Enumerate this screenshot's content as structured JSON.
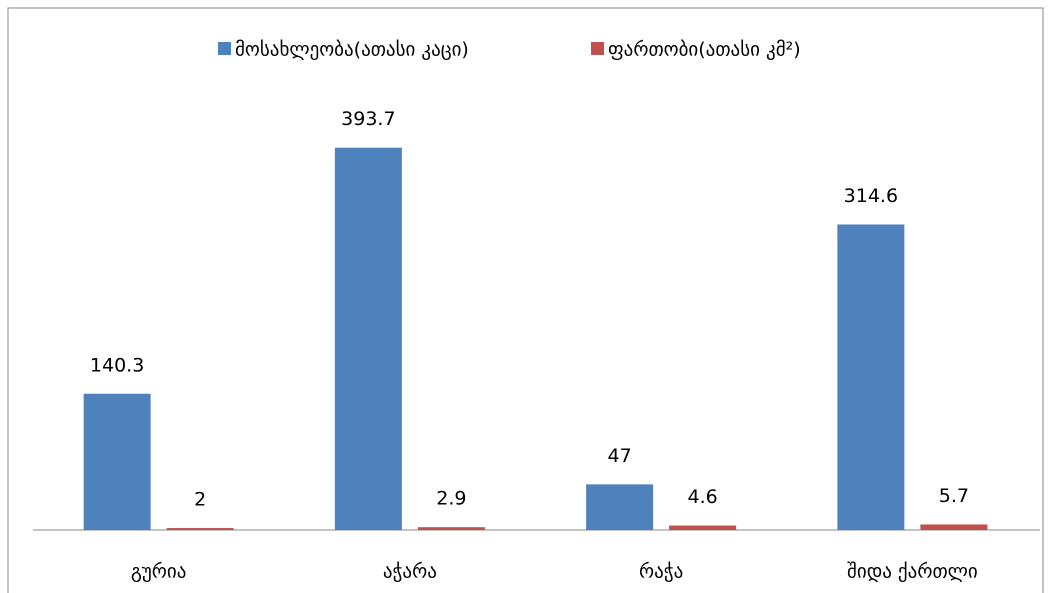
{
  "chart_data": {
    "type": "bar",
    "categories": [
      "გურია",
      "აჭარა",
      "რაჭა",
      "შიდა ქართლი"
    ],
    "series": [
      {
        "name": "მოსახლეობა(ათასი კაცი)",
        "color": "#4f81bd",
        "values": [
          140.3,
          393.7,
          47,
          314.6
        ]
      },
      {
        "name": "ფართობი(ათასი კმ²)",
        "color": "#c0504d",
        "values": [
          2,
          2.9,
          4.6,
          5.7
        ]
      }
    ],
    "ylim": [
      0,
      450
    ],
    "legend": "top"
  }
}
